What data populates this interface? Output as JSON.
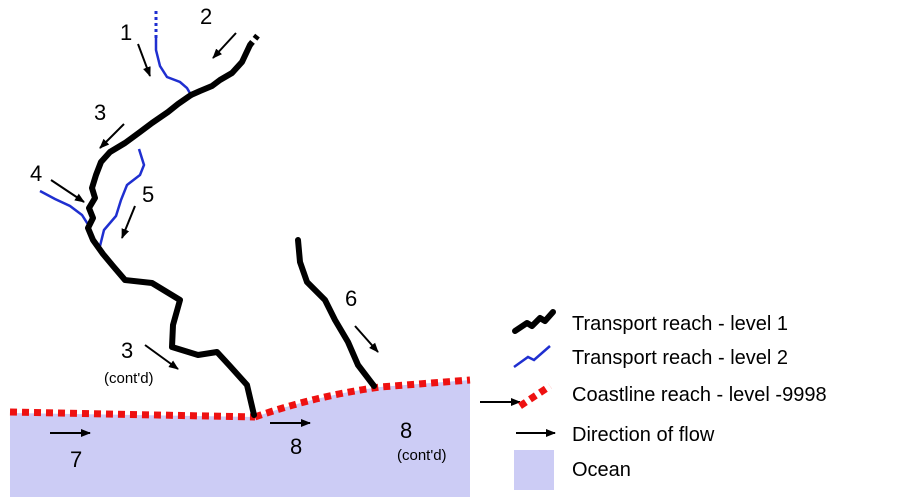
{
  "colors": {
    "level1": "#000000",
    "level2": "#1f2fd0",
    "coastline": "#ee1111",
    "ocean": "#ccccf5",
    "arrow": "#000000"
  },
  "labels": {
    "n1": "1",
    "n2": "2",
    "n3": "3",
    "n4": "4",
    "n5": "5",
    "n3b": "3",
    "n3b_sub": "(cont'd)",
    "n6": "6",
    "n7": "7",
    "n8": "8",
    "n8b": "8",
    "n8b_sub": "(cont'd)"
  },
  "legend": {
    "items": [
      {
        "key": "level1",
        "label": "Transport reach - level 1",
        "icon": "thick-black-line-icon"
      },
      {
        "key": "level2",
        "label": "Transport reach - level 2",
        "icon": "thin-blue-line-icon"
      },
      {
        "key": "coast",
        "label": "Coastline reach - level -9998",
        "icon": "red-dotted-line-icon"
      },
      {
        "key": "flow",
        "label": "Direction of flow",
        "icon": "arrow-icon"
      },
      {
        "key": "ocean",
        "label": "Ocean",
        "icon": "ocean-swatch-icon"
      }
    ]
  }
}
